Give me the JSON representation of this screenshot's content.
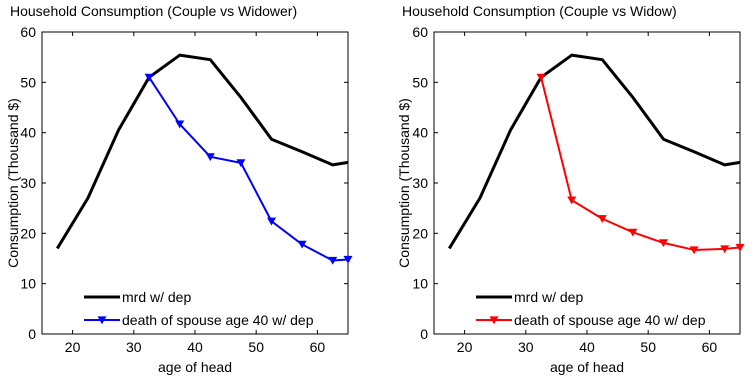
{
  "chart_data": [
    {
      "type": "line",
      "title": "Household Consumption (Couple vs Widower)",
      "xlabel": "age of head",
      "ylabel": "Consumption (Thousand $)",
      "xlim": [
        15,
        65
      ],
      "ylim": [
        0,
        60
      ],
      "xticks": [
        20,
        30,
        40,
        50,
        60
      ],
      "yticks": [
        0,
        10,
        20,
        30,
        40,
        50,
        60
      ],
      "grid": false,
      "legend_position": "bottom-left",
      "series": [
        {
          "name": "mrd w/ dep",
          "color": "#000000",
          "marker": "none",
          "x": [
            17.5,
            22.5,
            27.5,
            32.5,
            37.5,
            42.5,
            47.5,
            52.5,
            57.5,
            62.5,
            65
          ],
          "y": [
            17.0,
            27.0,
            40.5,
            51.0,
            55.4,
            54.5,
            47.0,
            38.7,
            36.2,
            33.6,
            34.1
          ]
        },
        {
          "name": "death of spouse age 40 w/ dep",
          "color": "#0000ff",
          "marker": "triangle-down",
          "x": [
            32.5,
            37.5,
            42.5,
            47.5,
            52.5,
            57.5,
            62.5,
            65
          ],
          "y": [
            51.0,
            41.7,
            35.2,
            34.0,
            22.4,
            17.8,
            14.6,
            14.8
          ]
        }
      ]
    },
    {
      "type": "line",
      "title": "Household Consumption (Couple vs Widow)",
      "xlabel": "age of head",
      "ylabel": "Consumption (Thousand $)",
      "xlim": [
        15,
        65
      ],
      "ylim": [
        0,
        60
      ],
      "xticks": [
        20,
        30,
        40,
        50,
        60
      ],
      "yticks": [
        0,
        10,
        20,
        30,
        40,
        50,
        60
      ],
      "grid": false,
      "legend_position": "bottom-left",
      "series": [
        {
          "name": "mrd w/ dep",
          "color": "#000000",
          "marker": "none",
          "x": [
            17.5,
            22.5,
            27.5,
            32.5,
            37.5,
            42.5,
            47.5,
            52.5,
            57.5,
            62.5,
            65
          ],
          "y": [
            17.0,
            27.0,
            40.5,
            51.0,
            55.4,
            54.5,
            47.0,
            38.7,
            36.2,
            33.6,
            34.1
          ]
        },
        {
          "name": "death of spouse age 40 w/ dep",
          "color": "#ff0000",
          "marker": "triangle-down",
          "x": [
            32.5,
            37.5,
            42.5,
            47.5,
            52.5,
            57.5,
            62.5,
            65
          ],
          "y": [
            51.0,
            26.6,
            22.9,
            20.2,
            18.1,
            16.7,
            16.9,
            17.2
          ]
        }
      ]
    }
  ]
}
